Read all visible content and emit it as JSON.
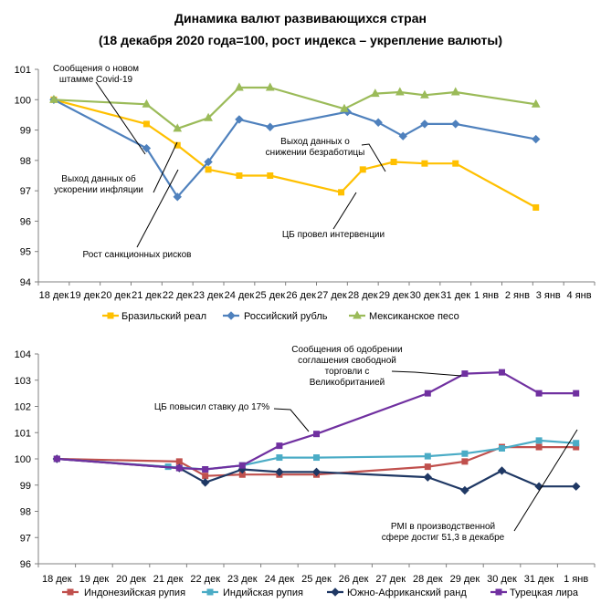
{
  "title_line1": "Динамика валют развивающихся стран",
  "title_line2": "(18 декабря 2020 года=100, рост индекса – укрепление валюты)",
  "chart_data": [
    {
      "type": "line",
      "categories": [
        "18 дек",
        "19 дек",
        "20 дек",
        "21 дек",
        "22 дек",
        "23 дек",
        "24 дек",
        "25 дек",
        "26 дек",
        "27 дек",
        "28 дек",
        "29 дек",
        "30 дек",
        "31 дек",
        "1 янв",
        "2 янв",
        "3 янв",
        "4 янв"
      ],
      "ylim": [
        94,
        101
      ],
      "yticks": [
        "94",
        "95",
        "96",
        "97",
        "98",
        "99",
        "100",
        "101"
      ],
      "series": [
        {
          "name": "Бразильский реал",
          "color": "#FFC000",
          "marker": "square",
          "points": [
            [
              0,
              100
            ],
            [
              3,
              99.2
            ],
            [
              4,
              98.5
            ],
            [
              5,
              97.7
            ],
            [
              6,
              97.5
            ],
            [
              7,
              97.5
            ],
            [
              9.3,
              96.95
            ],
            [
              10,
              97.7
            ],
            [
              11,
              97.95
            ],
            [
              12,
              97.9
            ],
            [
              13,
              97.9
            ],
            [
              15.6,
              96.45
            ]
          ]
        },
        {
          "name": "Российский рубль",
          "color": "#4F81BD",
          "marker": "diamond",
          "points": [
            [
              0,
              100
            ],
            [
              3,
              98.4
            ],
            [
              4,
              96.8
            ],
            [
              5,
              97.95
            ],
            [
              6,
              99.35
            ],
            [
              7,
              99.1
            ],
            [
              9.5,
              99.6
            ],
            [
              10.5,
              99.25
            ],
            [
              11.3,
              98.8
            ],
            [
              12,
              99.2
            ],
            [
              13,
              99.2
            ],
            [
              15.6,
              98.7
            ]
          ]
        },
        {
          "name": "Мексиканское песо",
          "color": "#9BBB59",
          "marker": "triangle",
          "points": [
            [
              0,
              100
            ],
            [
              3,
              99.85
            ],
            [
              4,
              99.05
            ],
            [
              5,
              99.4
            ],
            [
              6,
              100.4
            ],
            [
              7,
              100.4
            ],
            [
              9.4,
              99.7
            ],
            [
              10.4,
              100.2
            ],
            [
              11.2,
              100.25
            ],
            [
              12,
              100.15
            ],
            [
              13,
              100.25
            ],
            [
              15.6,
              99.85
            ]
          ]
        }
      ],
      "annotations": [
        {
          "lines": [
            "Сообщения о новом",
            "штамме Covid-19"
          ]
        },
        {
          "lines": [
            "Выход данных о",
            "снижении безработицы"
          ]
        },
        {
          "lines": [
            "Выход данных об",
            "ускорении инфляции"
          ]
        },
        {
          "lines": [
            "ЦБ провел интервенции"
          ]
        },
        {
          "lines": [
            "Рост санкционных рисков"
          ]
        }
      ]
    },
    {
      "type": "line",
      "categories": [
        "18 дек",
        "19 дек",
        "20 дек",
        "21 дек",
        "22 дек",
        "23 дек",
        "24 дек",
        "25 дек",
        "26 дек",
        "27 дек",
        "28 дек",
        "29 дек",
        "30 дек",
        "31 дек",
        "1 янв"
      ],
      "ylim": [
        96,
        104
      ],
      "yticks": [
        "96",
        "97",
        "98",
        "99",
        "100",
        "101",
        "102",
        "103",
        "104"
      ],
      "series": [
        {
          "name": "Индонезийская рупия",
          "color": "#C0504D",
          "marker": "square",
          "points": [
            [
              0,
              100
            ],
            [
              3.3,
              99.9
            ],
            [
              4,
              99.35
            ],
            [
              5,
              99.4
            ],
            [
              6,
              99.4
            ],
            [
              7,
              99.4
            ],
            [
              10,
              99.7
            ],
            [
              11,
              99.9
            ],
            [
              12,
              100.45
            ],
            [
              13,
              100.45
            ],
            [
              14,
              100.45
            ]
          ]
        },
        {
          "name": "Индийская рупия",
          "color": "#4BACC6",
          "marker": "square",
          "points": [
            [
              0,
              100
            ],
            [
              3,
              99.7
            ],
            [
              4,
              99.6
            ],
            [
              5,
              99.75
            ],
            [
              6,
              100.05
            ],
            [
              7,
              100.05
            ],
            [
              10,
              100.1
            ],
            [
              11,
              100.2
            ],
            [
              12,
              100.4
            ],
            [
              13,
              100.7
            ],
            [
              14,
              100.6
            ]
          ]
        },
        {
          "name": "Южно-Африканский ранд",
          "color": "#1F3864",
          "marker": "diamond",
          "points": [
            [
              0,
              100
            ],
            [
              3.3,
              99.65
            ],
            [
              4,
              99.1
            ],
            [
              5,
              99.6
            ],
            [
              6,
              99.5
            ],
            [
              7,
              99.5
            ],
            [
              10,
              99.3
            ],
            [
              11,
              98.8
            ],
            [
              12,
              99.55
            ],
            [
              13,
              98.95
            ],
            [
              14,
              98.95
            ]
          ]
        },
        {
          "name": "Турецкая лира",
          "color": "#7030A0",
          "marker": "square",
          "points": [
            [
              0,
              100
            ],
            [
              3.3,
              99.65
            ],
            [
              4,
              99.6
            ],
            [
              5,
              99.75
            ],
            [
              6,
              100.5
            ],
            [
              7,
              100.95
            ],
            [
              10,
              102.5
            ],
            [
              11,
              103.25
            ],
            [
              12,
              103.3
            ],
            [
              13,
              102.5
            ],
            [
              14,
              102.5
            ]
          ]
        }
      ],
      "annotations": [
        {
          "lines": [
            "Сообщения об одобрении",
            "соглашения свободной",
            "торговли с",
            "Великобританией"
          ]
        },
        {
          "lines": [
            "ЦБ повысил ставку до 17%"
          ]
        },
        {
          "lines": [
            "PMI в производственной",
            "сфере достиг 51,3 в декабре"
          ]
        }
      ]
    }
  ]
}
